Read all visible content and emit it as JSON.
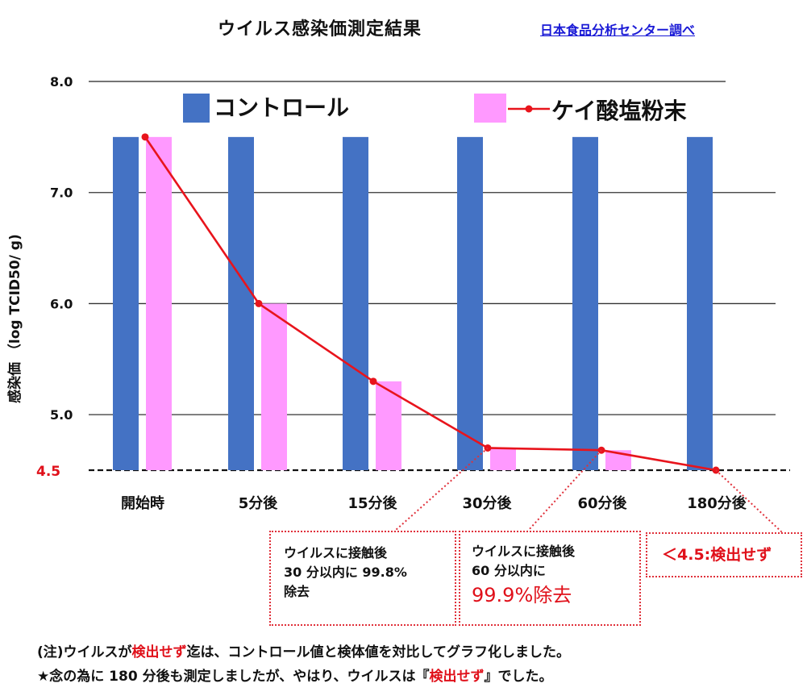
{
  "header": {
    "title": "ウイルス感染価測定結果",
    "source": "日本食品分析センター調べ"
  },
  "chart_data": {
    "type": "bar",
    "title": "ウイルス感染価測定結果",
    "ylabel": "感染価 （log TCID50/ g)",
    "xlabel": "",
    "ylim": [
      4.5,
      8.0
    ],
    "yticks": [
      "8.0",
      "7.0",
      "6.0",
      "5.0"
    ],
    "threshold_label": "4.5",
    "threshold_value": 4.5,
    "categories": [
      "開始時",
      "5分後",
      "15分後",
      "30分後",
      "60分後",
      "180分後"
    ],
    "series": [
      {
        "name": "コントロール",
        "kind": "bar",
        "color": "#4472c4",
        "values": [
          7.5,
          7.5,
          7.5,
          7.5,
          7.5,
          7.5
        ]
      },
      {
        "name": "ケイ酸塩粉末",
        "kind": "bar+line",
        "bar_color": "#ff99ff",
        "line_color": "#e8141c",
        "values": [
          7.5,
          6.0,
          5.3,
          4.7,
          4.68,
          4.5
        ]
      }
    ]
  },
  "annotations": {
    "box1": {
      "line1": "ウイルスに接触後",
      "line2": "30 分以内に 99.8%",
      "line3": "除去"
    },
    "box2": {
      "line1": "ウイルスに接触後",
      "line2": "60 分以内に",
      "line3": "99.9%除去"
    },
    "box3": {
      "text": "＜4.5:検出せず"
    }
  },
  "notes": {
    "line1_pre": "(注)ウイルスが",
    "line1_red": "検出せず",
    "line1_post": "迄は、コントロール値と検体値を対比してグラフ化しました。",
    "line2_pre": "★念の為に 180 分後も測定しましたが、やはり、ウイルスは『",
    "line2_red": "検出せず",
    "line2_post": "』でした。"
  }
}
